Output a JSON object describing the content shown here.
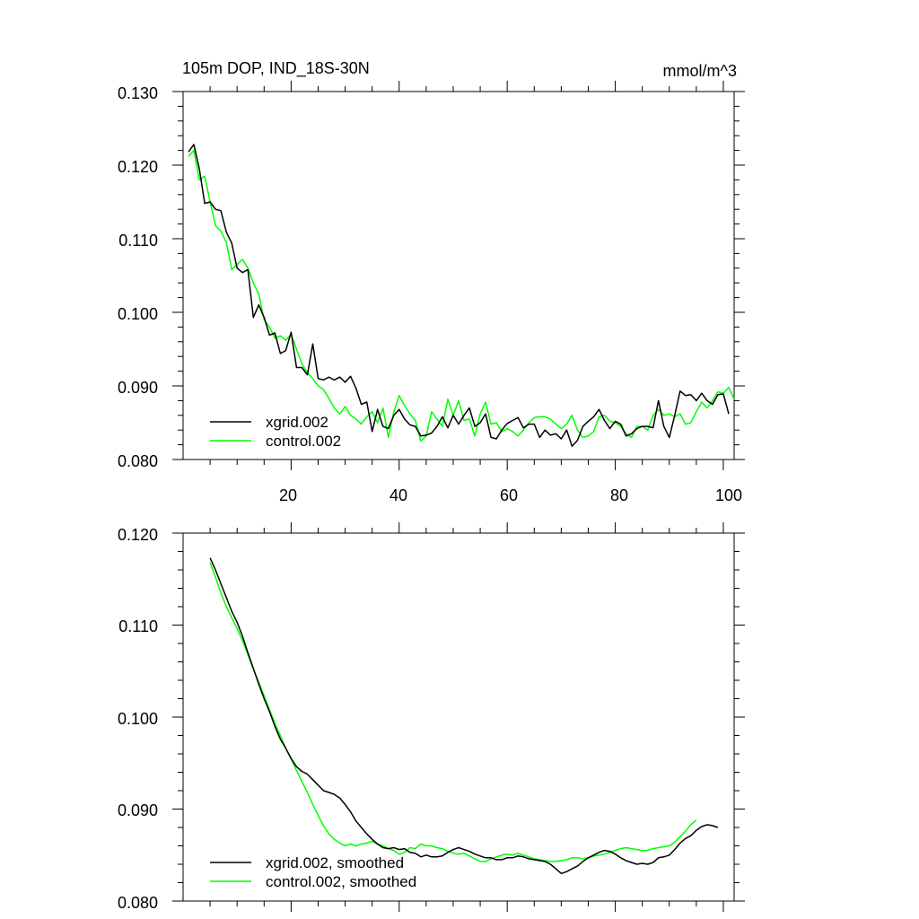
{
  "chart_data": [
    {
      "type": "line",
      "title": "105m DOP, IND_18S-30N",
      "units": "mmol/m^3",
      "xlim": [
        0,
        102
      ],
      "ylim": [
        0.08,
        0.13
      ],
      "yticks": [
        "0.080",
        "0.090",
        "0.100",
        "0.110",
        "0.120",
        "0.130"
      ],
      "xticks": [
        "20",
        "40",
        "60",
        "80",
        "100"
      ],
      "legend_placement": "bottom-left",
      "series": [
        {
          "name": "xgrid.002",
          "color": "#000000",
          "x_start": 1,
          "values": [
            0.1218,
            0.1228,
            0.1195,
            0.1148,
            0.115,
            0.114,
            0.1138,
            0.1109,
            0.1094,
            0.106,
            0.1054,
            0.1058,
            0.0993,
            0.101,
            0.0993,
            0.0969,
            0.0972,
            0.0944,
            0.0948,
            0.0973,
            0.0925,
            0.0925,
            0.0915,
            0.0957,
            0.091,
            0.0908,
            0.0912,
            0.0908,
            0.0912,
            0.0905,
            0.0913,
            0.0897,
            0.0875,
            0.0878,
            0.0838,
            0.0868,
            0.0845,
            0.0842,
            0.086,
            0.0868,
            0.0855,
            0.0847,
            0.0845,
            0.0832,
            0.0833,
            0.0836,
            0.0845,
            0.0858,
            0.0843,
            0.086,
            0.0848,
            0.086,
            0.087,
            0.0845,
            0.085,
            0.0862,
            0.083,
            0.0828,
            0.084,
            0.0849,
            0.0853,
            0.0857,
            0.0843,
            0.0848,
            0.0848,
            0.083,
            0.084,
            0.0833,
            0.0835,
            0.0828,
            0.084,
            0.0818,
            0.0826,
            0.0845,
            0.0852,
            0.0858,
            0.0868,
            0.0853,
            0.0842,
            0.0852,
            0.0848,
            0.0832,
            0.0835,
            0.0842,
            0.0845,
            0.0845,
            0.0843,
            0.088,
            0.0845,
            0.083,
            0.086,
            0.0893,
            0.0887,
            0.0888,
            0.088,
            0.089,
            0.088,
            0.0875,
            0.0888,
            0.0889,
            0.0862
          ]
        },
        {
          "name": "control.002",
          "color": "#00ff00",
          "x_start": 1,
          "values": [
            0.1212,
            0.122,
            0.118,
            0.1185,
            0.115,
            0.1118,
            0.111,
            0.1095,
            0.1058,
            0.1065,
            0.1072,
            0.106,
            0.104,
            0.1025,
            0.099,
            0.098,
            0.0965,
            0.0968,
            0.0962,
            0.097,
            0.095,
            0.093,
            0.0918,
            0.091,
            0.09,
            0.0895,
            0.0883,
            0.087,
            0.0862,
            0.0872,
            0.086,
            0.0855,
            0.0848,
            0.0858,
            0.0865,
            0.085,
            0.087,
            0.083,
            0.0865,
            0.0887,
            0.0873,
            0.0862,
            0.0853,
            0.0825,
            0.0832,
            0.0865,
            0.0855,
            0.0845,
            0.0882,
            0.086,
            0.088,
            0.0853,
            0.0855,
            0.0832,
            0.0862,
            0.0878,
            0.0848,
            0.085,
            0.0838,
            0.0842,
            0.0838,
            0.0832,
            0.084,
            0.085,
            0.0857,
            0.0858,
            0.0858,
            0.0855,
            0.0848,
            0.0842,
            0.0848,
            0.086,
            0.084,
            0.083,
            0.0832,
            0.0838,
            0.0858,
            0.086,
            0.0852,
            0.085,
            0.0845,
            0.0835,
            0.083,
            0.0845,
            0.0845,
            0.084,
            0.086,
            0.0868,
            0.086,
            0.0862,
            0.0858,
            0.0862,
            0.0848,
            0.085,
            0.0865,
            0.0878,
            0.087,
            0.088,
            0.0892,
            0.089,
            0.0898,
            0.0882
          ]
        }
      ]
    },
    {
      "type": "line",
      "xlim": [
        0,
        102
      ],
      "ylim": [
        0.08,
        0.12
      ],
      "yticks": [
        "0.080",
        "0.090",
        "0.100",
        "0.110",
        "0.120"
      ],
      "legend_placement": "bottom-left",
      "series": [
        {
          "name": "xgrid.002, smoothed",
          "color": "#000000",
          "x_start": 5,
          "values": [
            0.1173,
            0.116,
            0.1145,
            0.113,
            0.1115,
            0.1103,
            0.1088,
            0.107,
            0.1053,
            0.1036,
            0.102,
            0.1006,
            0.099,
            0.0976,
            0.0966,
            0.0955,
            0.0946,
            0.0941,
            0.0938,
            0.0932,
            0.0926,
            0.092,
            0.0918,
            0.0916,
            0.0912,
            0.0905,
            0.0897,
            0.0887,
            0.088,
            0.0873,
            0.0867,
            0.0862,
            0.0858,
            0.0857,
            0.0858,
            0.0856,
            0.0857,
            0.0853,
            0.0852,
            0.0848,
            0.085,
            0.0848,
            0.0848,
            0.0849,
            0.0853,
            0.0856,
            0.0858,
            0.0856,
            0.0854,
            0.0851,
            0.0849,
            0.0847,
            0.0847,
            0.0845,
            0.0845,
            0.0847,
            0.0847,
            0.0849,
            0.0848,
            0.0846,
            0.0845,
            0.0844,
            0.0843,
            0.084,
            0.0835,
            0.083,
            0.0832,
            0.0835,
            0.0838,
            0.0843,
            0.0847,
            0.085,
            0.0853,
            0.0855,
            0.0854,
            0.0851,
            0.0847,
            0.0844,
            0.0842,
            0.084,
            0.0841,
            0.084,
            0.0842,
            0.0847,
            0.0848,
            0.085,
            0.0856,
            0.0863,
            0.0868,
            0.0871,
            0.0877,
            0.0881,
            0.0883,
            0.0882,
            0.088
          ]
        },
        {
          "name": "control.002, smoothed",
          "color": "#00ff00",
          "x_start": 5,
          "values": [
            0.1168,
            0.1152,
            0.1135,
            0.112,
            0.1108,
            0.1096,
            0.1083,
            0.1068,
            0.1052,
            0.1038,
            0.1023,
            0.1008,
            0.0993,
            0.098,
            0.0966,
            0.0954,
            0.0942,
            0.093,
            0.0918,
            0.0905,
            0.0893,
            0.0882,
            0.0873,
            0.0867,
            0.0863,
            0.086,
            0.0862,
            0.086,
            0.0862,
            0.0863,
            0.0865,
            0.0862,
            0.086,
            0.0857,
            0.0855,
            0.0851,
            0.0853,
            0.0858,
            0.0857,
            0.0862,
            0.086,
            0.086,
            0.0858,
            0.0857,
            0.0854,
            0.0852,
            0.0851,
            0.0852,
            0.0849,
            0.0846,
            0.0843,
            0.0843,
            0.0846,
            0.0848,
            0.085,
            0.0851,
            0.085,
            0.0852,
            0.085,
            0.0848,
            0.0846,
            0.0845,
            0.0844,
            0.0843,
            0.0843,
            0.0844,
            0.0845,
            0.0847,
            0.0847,
            0.0846,
            0.0847,
            0.0849,
            0.085,
            0.0851,
            0.0853,
            0.0855,
            0.0857,
            0.0858,
            0.0857,
            0.0856,
            0.0855,
            0.0855,
            0.0857,
            0.0858,
            0.0859,
            0.086,
            0.0864,
            0.087,
            0.0876,
            0.0883,
            0.0888
          ]
        }
      ]
    }
  ]
}
